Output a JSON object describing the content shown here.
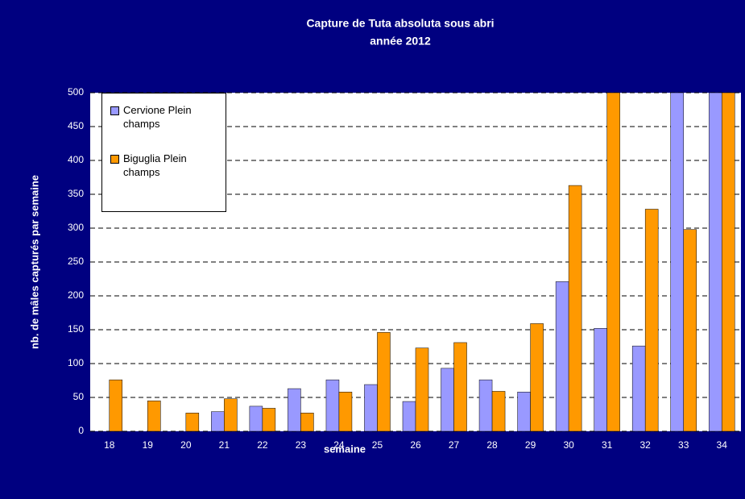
{
  "chart_data": {
    "type": "bar",
    "title": "Capture de Tuta absoluta sous abri",
    "subtitle": "année 2012",
    "x_label": "semaine",
    "y_label": "nb. de mâles capturés par semaine",
    "categories": [
      "18",
      "19",
      "20",
      "21",
      "22",
      "23",
      "24",
      "25",
      "26",
      "27",
      "28",
      "29",
      "30",
      "31",
      "32",
      "33",
      "34"
    ],
    "series": [
      {
        "name": "Cervione Plein champs",
        "color": "#9999ff",
        "values": [
          0,
          0,
          0,
          29,
          37,
          63,
          76,
          69,
          44,
          93,
          76,
          58,
          221,
          152,
          126,
          500,
          500
        ]
      },
      {
        "name": "Biguglia Plein champs",
        "color": "#ff9900",
        "values": [
          76,
          45,
          27,
          48,
          34,
          27,
          58,
          146,
          123,
          131,
          59,
          159,
          363,
          500,
          328,
          298,
          500
        ]
      }
    ],
    "ylim": [
      0,
      500
    ],
    "yticks": [
      0,
      50,
      100,
      150,
      200,
      250,
      300,
      350,
      400,
      450,
      500
    ],
    "grid": true,
    "legend": "top-left"
  }
}
